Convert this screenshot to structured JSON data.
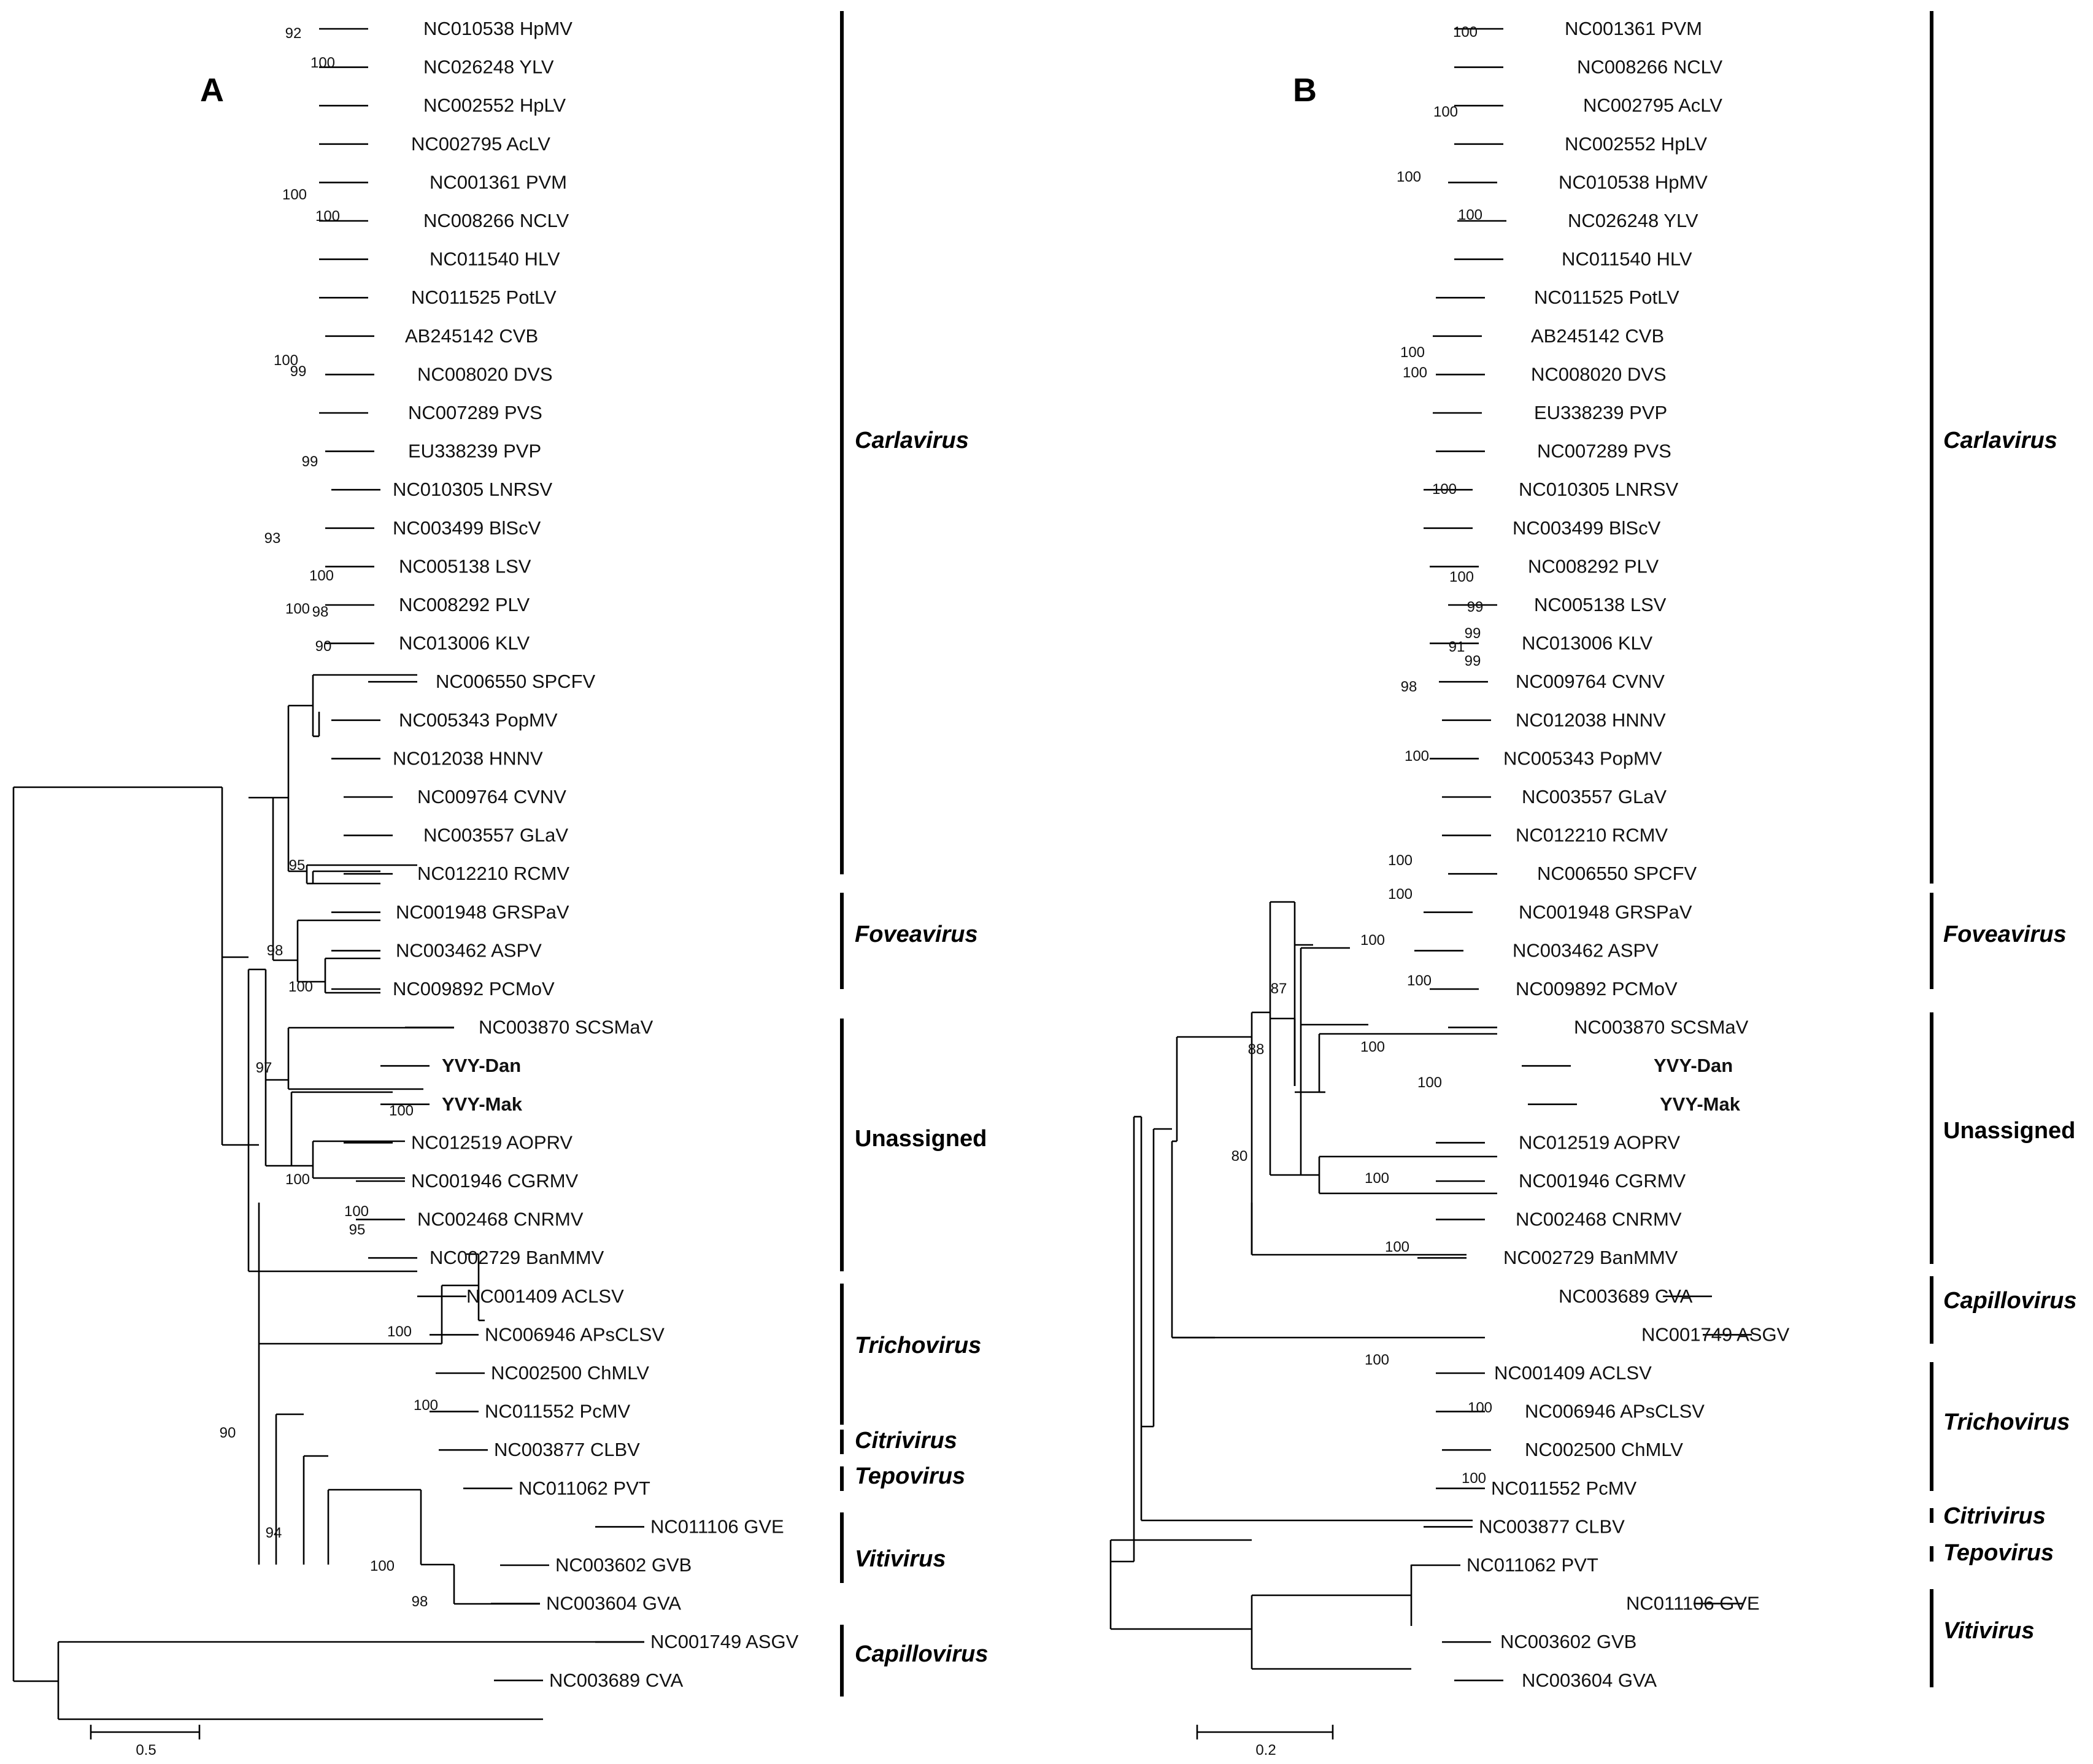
{
  "panels": {
    "A": {
      "label": "A",
      "scale_label": "0.5",
      "leaves": [
        "NC010538 HpMV",
        "NC026248 YLV",
        "NC002552 HpLV",
        "NC002795 AcLV",
        "NC001361 PVM",
        "NC008266 NCLV",
        "NC011540 HLV",
        "NC011525 PotLV",
        "AB245142 CVB",
        "NC008020 DVS",
        "NC007289 PVS",
        "EU338239 PVP",
        "NC010305 LNRSV",
        "NC003499 BlScV",
        "NC005138 LSV",
        "NC008292 PLV",
        "NC013006 KLV",
        "NC006550 SPCFV",
        "NC005343 PopMV",
        "NC012038 HNNV",
        "NC009764 CVNV",
        "NC003557 GLaV",
        "NC012210 RCMV",
        "NC001948 GRSPaV",
        "NC003462 ASPV",
        "NC009892 PCMoV",
        "NC003870 SCSMaV",
        "YVY-Dan",
        "YVY-Mak",
        "NC012519 AOPRV",
        "NC001946 CGRMV",
        "NC002468 CNRMV",
        "NC002729 BanMMV",
        "NC001409 ACLSV",
        "NC006946 APsCLSV",
        "NC002500 ChMLV",
        "NC011552 PcMV",
        "NC003877 CLBV",
        "NC011062 PVT",
        "NC011106 GVE",
        "NC003602 GVB",
        "NC003604 GVA",
        "NC001749 ASGV",
        "NC003689 CVA"
      ],
      "bootstraps": [
        "92",
        "100",
        "100",
        "100",
        "100",
        "99",
        "99",
        "100",
        "98",
        "90",
        "100",
        "93",
        "95",
        "98",
        "100",
        "97",
        "100",
        "100",
        "100",
        "95",
        "100",
        "100",
        "90",
        "94",
        "100",
        "98"
      ],
      "genera": [
        "Carlavirus",
        "Foveavirus",
        "Unassigned",
        "Trichovirus",
        "Citrivirus",
        "Tepovirus",
        "Vitivirus",
        "Capillovirus"
      ]
    },
    "B": {
      "label": "B",
      "scale_label": "0.2",
      "leaves": [
        "NC001361 PVM",
        "NC008266 NCLV",
        "NC002795 AcLV",
        "NC002552 HpLV",
        "NC010538 HpMV",
        "NC026248 YLV",
        "NC011540 HLV",
        "NC011525 PotLV",
        "AB245142 CVB",
        "NC008020 DVS",
        "EU338239 PVP",
        "NC007289 PVS",
        "NC010305 LNRSV",
        "NC003499 BlScV",
        "NC008292 PLV",
        "NC005138 LSV",
        "NC013006 KLV",
        "NC009764 CVNV",
        "NC012038 HNNV",
        "NC005343 PopMV",
        "NC003557 GLaV",
        "NC012210 RCMV",
        "NC006550 SPCFV",
        "NC001948 GRSPaV",
        "NC003462 ASPV",
        "NC009892 PCMoV",
        "NC003870 SCSMaV",
        "YVY-Dan",
        "YVY-Mak",
        "NC012519 AOPRV",
        "NC001946 CGRMV",
        "NC002468 CNRMV",
        "NC002729 BanMMV",
        "NC003689 CVA",
        "NC001749 ASGV",
        "NC001409 ACLSV",
        "NC006946 APsCLSV",
        "NC002500 ChMLV",
        "NC011552 PcMV",
        "NC003877 CLBV",
        "NC011062 PVT",
        "NC011106 GVE",
        "NC003602 GVB",
        "NC003604 GVA"
      ],
      "bootstraps": [
        "100",
        "100",
        "100",
        "100",
        "100",
        "100",
        "100",
        "100",
        "91",
        "99",
        "99",
        "99",
        "98",
        "100",
        "100",
        "100",
        "100",
        "100",
        "87",
        "100",
        "100",
        "88",
        "100",
        "80",
        "100",
        "100",
        "100",
        "100"
      ],
      "genera": [
        "Carlavirus",
        "Foveavirus",
        "Unassigned",
        "Capillovirus",
        "Trichovirus",
        "Citrivirus",
        "Tepovirus",
        "Vitivirus"
      ]
    }
  }
}
